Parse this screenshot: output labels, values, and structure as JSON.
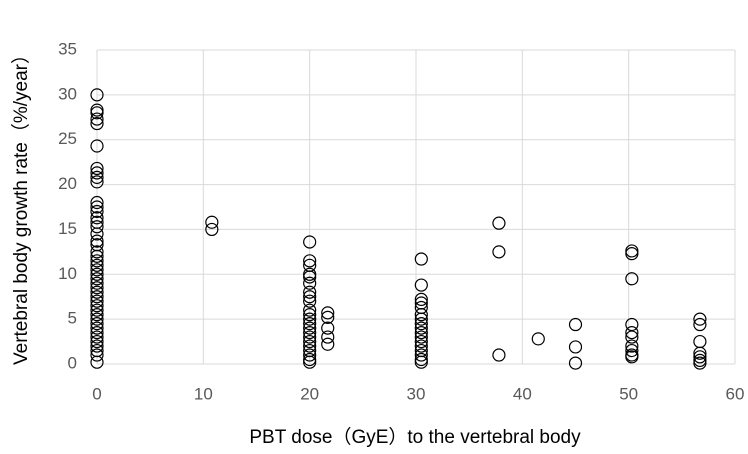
{
  "chart_data": {
    "type": "scatter",
    "xlabel": "PBT dose（GyE）to the vertebral body",
    "ylabel": "Vertebral body growth rate（%/year）",
    "xlim": [
      0,
      60
    ],
    "ylim": [
      0,
      35
    ],
    "xticks": [
      0,
      10,
      20,
      30,
      40,
      50,
      60
    ],
    "yticks": [
      0,
      5,
      10,
      15,
      20,
      25,
      30,
      35
    ],
    "grid": true,
    "color": "#000000",
    "series": [
      {
        "name": "",
        "color": "#000000",
        "x": [
          0,
          0,
          0,
          0,
          0,
          0,
          0,
          0,
          0,
          0,
          0,
          0,
          0,
          0,
          0,
          0,
          0,
          0,
          0,
          0,
          0,
          0,
          0,
          0,
          0,
          0,
          0,
          0,
          0,
          0,
          0,
          0,
          0,
          0,
          0,
          0,
          0,
          0,
          0,
          0,
          0,
          0,
          0,
          0,
          10.8,
          10.8,
          20,
          20,
          20,
          20,
          20,
          20,
          20,
          20,
          20,
          20,
          20,
          20,
          20,
          20,
          20,
          20,
          20,
          20,
          20,
          20,
          20,
          20,
          21.7,
          21.7,
          21.7,
          21.7,
          21.7,
          30.5,
          30.5,
          30.5,
          30.5,
          30.5,
          30.5,
          30.5,
          30.5,
          30.5,
          30.5,
          30.5,
          30.5,
          30.5,
          30.5,
          30.5,
          30.5,
          30.5,
          37.8,
          37.8,
          37.8,
          41.5,
          45,
          45,
          45,
          50.3,
          50.3,
          50.3,
          50.3,
          50.3,
          50.3,
          50.3,
          50.3,
          50.3,
          50.3,
          56.7,
          56.7,
          56.7,
          56.7,
          56.7,
          56.7,
          56.7
        ],
        "values": [
          30,
          28.3,
          28,
          27.3,
          26.8,
          24.3,
          21.8,
          21.3,
          20.8,
          20.3,
          18,
          17.5,
          17,
          16.3,
          15.8,
          15.3,
          14.5,
          13.7,
          13.3,
          12.5,
          12,
          11.5,
          11,
          10.5,
          10,
          9.5,
          9,
          8.5,
          8,
          7.5,
          7,
          6.5,
          6,
          5.5,
          5,
          4.5,
          4,
          3.5,
          3,
          2.5,
          2,
          1.5,
          1,
          0.2,
          15.8,
          15,
          13.6,
          11.5,
          11,
          10,
          9.7,
          9,
          8,
          7.5,
          7,
          6,
          5.5,
          5,
          4.5,
          4,
          3.5,
          3,
          2.5,
          2,
          1.5,
          1,
          0.5,
          0.2,
          5.7,
          5.2,
          4,
          3,
          2.2,
          11.7,
          8.8,
          7.2,
          6.8,
          6.3,
          5.5,
          5,
          4.5,
          4,
          3.5,
          3,
          2.5,
          2,
          1.5,
          1,
          0.5,
          0.2,
          15.7,
          12.5,
          1,
          2.8,
          4.4,
          1.9,
          0.1,
          12.6,
          12.3,
          9.5,
          4.4,
          3.5,
          3,
          2,
          1.5,
          1,
          0.8,
          5,
          4.4,
          2.5,
          1.2,
          0.8,
          0.4,
          0.1
        ]
      }
    ]
  }
}
